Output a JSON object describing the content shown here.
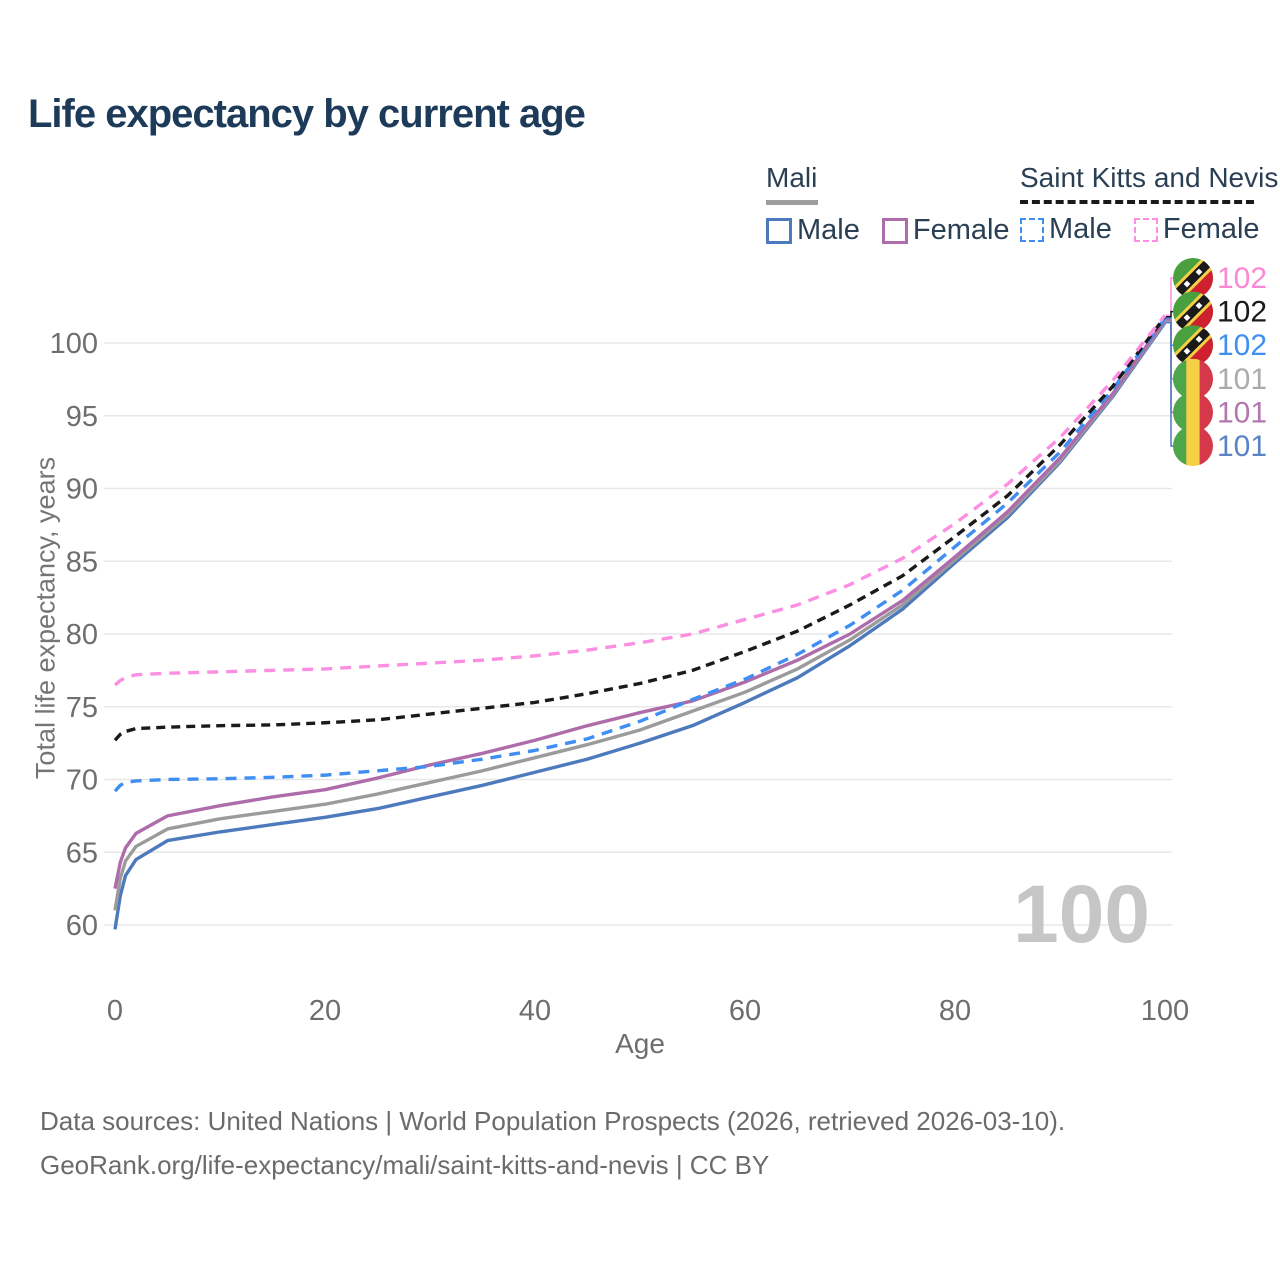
{
  "header": {
    "title": "Life expectancy by current age"
  },
  "legend": {
    "mali": {
      "title": "Mali",
      "male_label": "Male",
      "female_label": "Female"
    },
    "skn": {
      "title": "Saint Kitts and Nevis",
      "male_label": "Male",
      "female_label": "Female"
    }
  },
  "watermark": "100",
  "footer": {
    "line1": "Data sources: United Nations | World Population Prospects (2026, retrieved 2026-03-10).",
    "line2": "GeoRank.org/life-expectancy/mali/saint-kitts-and-nevis | CC BY"
  },
  "colors": {
    "title": "#1d3b59",
    "axis_text": "#6e6e6e",
    "axis_title": "#757575",
    "grid": "#e7e7e7",
    "watermark": "#c6c6c6",
    "footer_text": "#6b6b6b",
    "legend_text": "#2b3f54",
    "mali_underline": "#9e9e9e",
    "skn_underline": "#1a1a1a",
    "flag_mali": {
      "green": "#4ea64b",
      "yellow": "#f5cf45",
      "red": "#d53848"
    },
    "flag_skn": {
      "green": "#4a9f3f",
      "red": "#cf2030",
      "yellow": "#f5cf45",
      "black": "#1a1a1a",
      "star": "#ffffff"
    }
  },
  "chart_data": {
    "type": "line",
    "title": "Life expectancy by current age",
    "xlabel": "Age",
    "ylabel": "Total life expectancy, years",
    "xlim": [
      0,
      100
    ],
    "ylim": [
      58,
      104
    ],
    "grid": "horizontal",
    "legend_position": "top-right",
    "x_ticks": [
      0,
      20,
      40,
      60,
      80,
      100
    ],
    "y_ticks": [
      60,
      65,
      70,
      75,
      80,
      85,
      90,
      95,
      100
    ],
    "x": [
      0,
      0.5,
      1,
      2,
      5,
      10,
      15,
      20,
      25,
      30,
      35,
      40,
      45,
      50,
      55,
      60,
      65,
      70,
      75,
      80,
      85,
      90,
      95,
      100
    ],
    "series": [
      {
        "key": "mali_male",
        "name": "Mali — Male",
        "country": "Mali",
        "sex": "Male",
        "color": "#4d79bd",
        "label_color": "#5b83c3",
        "dash": null,
        "z": 1,
        "label_row": 5,
        "end_label": "101",
        "flag": "mali",
        "values": [
          59.7,
          62.0,
          63.4,
          64.5,
          65.8,
          66.4,
          66.9,
          67.4,
          68.0,
          68.8,
          69.6,
          70.5,
          71.4,
          72.5,
          73.7,
          75.3,
          77.0,
          79.2,
          81.7,
          84.9,
          88.0,
          91.8,
          96.3,
          101.4
        ]
      },
      {
        "key": "mali_both",
        "name": "Mali — Both sexes",
        "country": "Mali",
        "sex": "Both",
        "color": "#9b9b9b",
        "label_color": "#ababab",
        "dash": null,
        "z": 2,
        "label_row": 3,
        "end_label": "101",
        "flag": "mali",
        "values": [
          61.0,
          63.2,
          64.4,
          65.4,
          66.6,
          67.3,
          67.8,
          68.3,
          69.0,
          69.8,
          70.6,
          71.5,
          72.4,
          73.4,
          74.7,
          76.0,
          77.6,
          79.6,
          82.0,
          85.1,
          88.2,
          91.9,
          96.4,
          101.5
        ]
      },
      {
        "key": "mali_female",
        "name": "Mali — Female",
        "country": "Mali",
        "sex": "Female",
        "color": "#ae6cab",
        "label_color": "#b177af",
        "dash": null,
        "z": 3,
        "label_row": 4,
        "end_label": "101",
        "flag": "mali",
        "values": [
          62.5,
          64.3,
          65.3,
          66.3,
          67.5,
          68.2,
          68.8,
          69.3,
          70.1,
          71.0,
          71.8,
          72.7,
          73.7,
          74.6,
          75.4,
          76.7,
          78.2,
          80.0,
          82.3,
          85.3,
          88.4,
          92.1,
          96.5,
          101.6
        ]
      },
      {
        "key": "skn_male",
        "name": "Saint Kitts and Nevis — Male",
        "country": "Saint Kitts and Nevis",
        "sex": "Male",
        "color": "#3f8ef2",
        "label_color": "#3f8ef2",
        "dash": "11 8",
        "z": 4,
        "label_row": 2,
        "end_label": "102",
        "flag": "skn",
        "values": [
          69.2,
          69.6,
          69.8,
          69.9,
          70.0,
          70.05,
          70.15,
          70.3,
          70.6,
          70.9,
          71.4,
          72.0,
          72.8,
          74.0,
          75.5,
          76.9,
          78.6,
          80.6,
          83.0,
          86.0,
          89.0,
          92.5,
          96.8,
          101.7
        ]
      },
      {
        "key": "skn_both",
        "name": "Saint Kitts and Nevis — Both sexes",
        "country": "Saint Kitts and Nevis",
        "sex": "Both",
        "color": "#1a1a1a",
        "label_color": "#1a1a1a",
        "dash": "9 6",
        "z": 5,
        "label_row": 1,
        "end_label": "102",
        "flag": "skn",
        "values": [
          72.7,
          73.1,
          73.3,
          73.5,
          73.6,
          73.7,
          73.75,
          73.9,
          74.1,
          74.5,
          74.9,
          75.3,
          75.9,
          76.6,
          77.5,
          78.8,
          80.2,
          82.0,
          84.0,
          86.7,
          89.5,
          93.0,
          97.0,
          101.8
        ]
      },
      {
        "key": "skn_female",
        "name": "Saint Kitts and Nevis — Female",
        "country": "Saint Kitts and Nevis",
        "sex": "Female",
        "color": "#fc8fe2",
        "label_color": "#fb87d6",
        "dash": "11 8",
        "z": 6,
        "label_row": 0,
        "end_label": "102",
        "flag": "skn",
        "values": [
          76.5,
          76.8,
          77.0,
          77.2,
          77.3,
          77.4,
          77.5,
          77.6,
          77.8,
          78.0,
          78.2,
          78.5,
          78.9,
          79.4,
          80.0,
          81.0,
          82.0,
          83.4,
          85.2,
          87.6,
          90.3,
          93.5,
          97.4,
          101.9
        ]
      }
    ]
  }
}
